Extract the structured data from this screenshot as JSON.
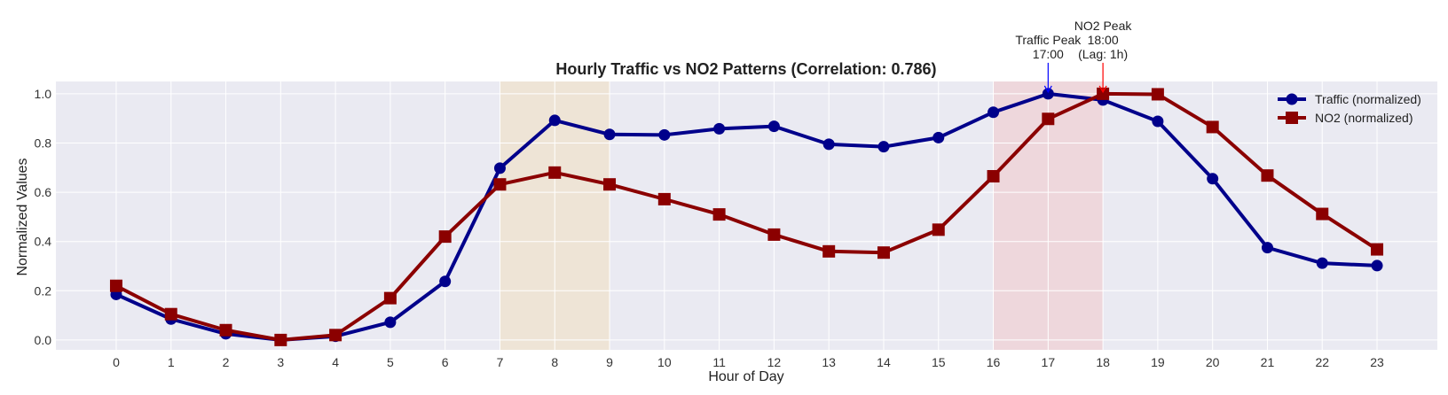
{
  "chart_data": {
    "type": "line",
    "title": "Hourly Traffic vs NO2 Patterns (Correlation: 0.786)",
    "xlabel": "Hour of Day",
    "ylabel": "Normalized Values",
    "x": [
      0,
      1,
      2,
      3,
      4,
      5,
      6,
      7,
      8,
      9,
      10,
      11,
      12,
      13,
      14,
      15,
      16,
      17,
      18,
      19,
      20,
      21,
      22,
      23
    ],
    "xlim": [
      -1.1,
      24.1
    ],
    "ylim": [
      -0.04,
      1.05
    ],
    "yticks": [
      "0.0",
      "0.2",
      "0.4",
      "0.6",
      "0.8",
      "1.0"
    ],
    "grid": true,
    "legend_position": "top-right",
    "series": [
      {
        "name": "Traffic (normalized)",
        "color": "#00008b",
        "marker": "circle",
        "values": [
          0.185,
          0.085,
          0.025,
          0.0,
          0.015,
          0.072,
          0.238,
          0.698,
          0.892,
          0.835,
          0.833,
          0.858,
          0.868,
          0.795,
          0.785,
          0.822,
          0.925,
          1.0,
          0.975,
          0.888,
          0.655,
          0.375,
          0.312,
          0.302
        ]
      },
      {
        "name": "NO2 (normalized)",
        "color": "#8b0000",
        "marker": "square",
        "values": [
          0.22,
          0.105,
          0.04,
          0.0,
          0.02,
          0.17,
          0.42,
          0.632,
          0.68,
          0.632,
          0.572,
          0.51,
          0.428,
          0.36,
          0.355,
          0.448,
          0.665,
          0.898,
          1.0,
          0.998,
          0.865,
          0.668,
          0.512,
          0.368
        ]
      }
    ],
    "shaded_regions": [
      {
        "from": 7,
        "to": 9,
        "color": "#f5deb3"
      },
      {
        "from": 16,
        "to": 18,
        "color": "#f4c2c2"
      }
    ],
    "annotations": [
      {
        "lines": [
          "Traffic Peak",
          "17:00"
        ],
        "x": 17,
        "y": 1.0,
        "color": "#0000ff"
      },
      {
        "lines": [
          "NO2 Peak",
          "18:00",
          "(Lag: 1h)"
        ],
        "x": 18,
        "y": 1.0,
        "color": "#ff0000"
      }
    ]
  }
}
